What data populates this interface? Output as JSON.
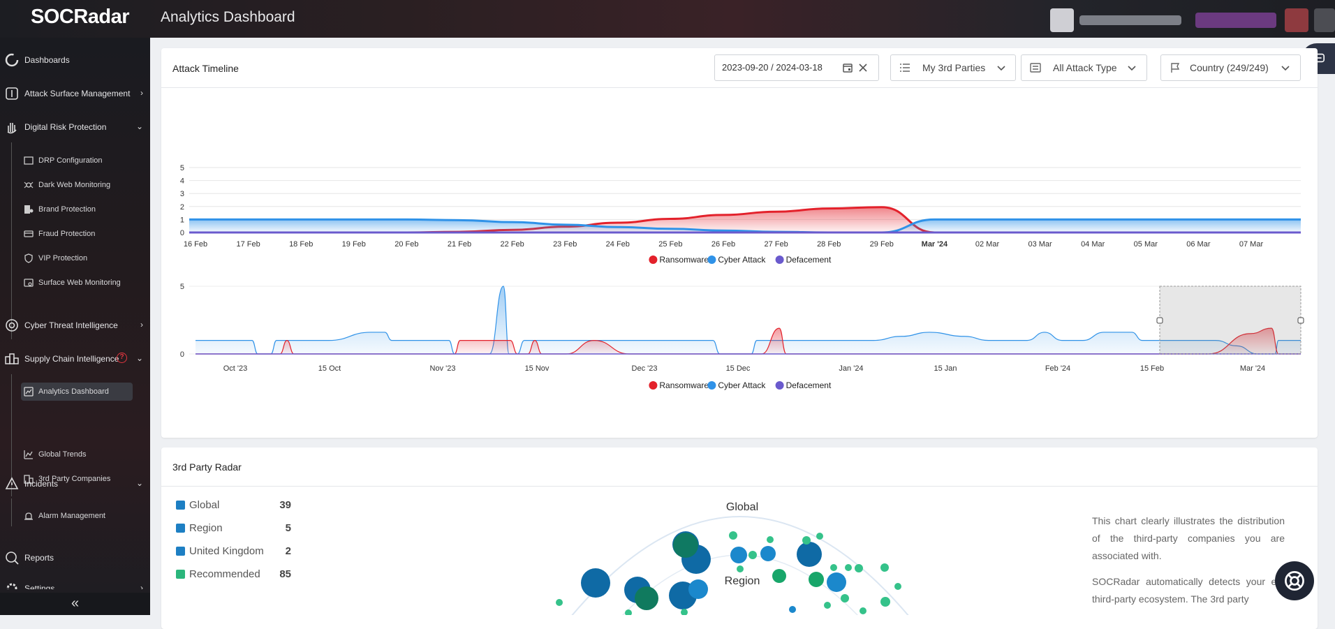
{
  "app": {
    "logo_text": "SOCRadar",
    "title": "Analytics Dashboard"
  },
  "sidebar": {
    "items": [
      {
        "label": "Dashboards",
        "icon": "dashboard-icon",
        "chevron": ""
      },
      {
        "label": "Attack Surface Management",
        "icon": "asm-icon",
        "chevron": "›"
      },
      {
        "label": "Digital Risk Protection",
        "icon": "hand-icon",
        "chevron": "⌄"
      },
      {
        "label": "Cyber Threat Intelligence",
        "icon": "eye-icon",
        "chevron": "›"
      },
      {
        "label": "Supply Chain Intelligence",
        "icon": "supply-chain-icon",
        "chevron": "⌄",
        "badge": "?"
      },
      {
        "label": "Incidents",
        "icon": "incident-icon",
        "chevron": "⌄"
      },
      {
        "label": "Reports",
        "icon": "reports-icon",
        "chevron": ""
      },
      {
        "label": "Settings",
        "icon": "gear-icon",
        "chevron": "›"
      }
    ],
    "drp_sub": [
      {
        "label": "DRP Configuration",
        "icon": "config-icon"
      },
      {
        "label": "Dark Web Monitoring",
        "icon": "spider-icon"
      },
      {
        "label": "Brand Protection",
        "icon": "brand-icon"
      },
      {
        "label": "Fraud Protection",
        "icon": "fraud-icon"
      },
      {
        "label": "VIP Protection",
        "icon": "shield-icon"
      },
      {
        "label": "Surface Web Monitoring",
        "icon": "web-icon"
      }
    ],
    "sci_sub": [
      {
        "label": "Analytics Dashboard",
        "icon": "analytics-icon",
        "active": true
      },
      {
        "label": "Global Trends",
        "icon": "trends-icon"
      },
      {
        "label": "3rd Party Companies",
        "icon": "building-icon"
      }
    ],
    "incidents_sub": [
      {
        "label": "Alarm Management",
        "icon": "alarm-icon"
      }
    ],
    "collapse_glyph": "«"
  },
  "attack_timeline": {
    "title": "Attack Timeline",
    "date_range": "2023-09-20 / 2024-03-18",
    "filter_parties": "My 3rd Parties",
    "filter_attack": "All Attack Type",
    "filter_country": "Country (249/249)"
  },
  "radar": {
    "title": "3rd Party Radar",
    "legend": [
      {
        "name": "Global",
        "value": "39",
        "color": "#1d7fc3"
      },
      {
        "name": "Region",
        "value": "5",
        "color": "#1d7fc3"
      },
      {
        "name": "United Kingdom",
        "value": "2",
        "color": "#1d7fc3"
      },
      {
        "name": "Recommended",
        "value": "85",
        "color": "#2bb67c"
      }
    ],
    "ring_global": "Global",
    "ring_region": "Region",
    "desc1": "This chart clearly illustrates the distribution of the third-party companies you are associated with.",
    "desc2": "SOCRadar automatically detects your ent third-party ecosystem. The 3rd party"
  },
  "chart_data": [
    {
      "type": "area",
      "x": [
        "16 Feb",
        "17 Feb",
        "18 Feb",
        "19 Feb",
        "20 Feb",
        "21 Feb",
        "22 Feb",
        "23 Feb",
        "24 Feb",
        "25 Feb",
        "26 Feb",
        "27 Feb",
        "28 Feb",
        "29 Feb",
        "Mar '24",
        "02 Mar",
        "03 Mar",
        "04 Mar",
        "05 Mar",
        "06 Mar",
        "07 Mar"
      ],
      "ylim": [
        0,
        5
      ],
      "yticks": [
        "0",
        "1",
        "2",
        "3",
        "4",
        "5"
      ],
      "grid": true,
      "series": [
        {
          "name": "Ransomware",
          "color": "#e3212b",
          "values": [
            0,
            0,
            0,
            0,
            0,
            0.05,
            0.2,
            0.45,
            0.75,
            1.05,
            1.35,
            1.6,
            1.85,
            1.95,
            0,
            0,
            0,
            0,
            0,
            0,
            0
          ]
        },
        {
          "name": "Cyber Attack",
          "color": "#2f92e8",
          "values": [
            1,
            1,
            1,
            1,
            1,
            0.95,
            0.8,
            0.6,
            0.42,
            0.28,
            0.15,
            0.05,
            0,
            0,
            1,
            1,
            1,
            1,
            1,
            1,
            1
          ]
        },
        {
          "name": "Defacement",
          "color": "#6a5acd",
          "values": [
            0,
            0,
            0,
            0,
            0,
            0,
            0,
            0,
            0,
            0,
            0,
            0,
            0,
            0,
            0,
            0,
            0,
            0,
            0,
            0,
            0
          ]
        }
      ],
      "legend_position": "bottom"
    },
    {
      "type": "area",
      "x": [
        "Oct '23",
        "15 Oct",
        "Nov '23",
        "15 Nov",
        "Dec '23",
        "15 Dec",
        "Jan '24",
        "15 Jan",
        "Feb '24",
        "15 Feb",
        "Mar '24"
      ],
      "ylim": [
        0,
        5
      ],
      "yticks": [
        "0",
        "5"
      ],
      "series": [
        {
          "name": "Ransomware",
          "color": "#e3212b"
        },
        {
          "name": "Cyber Attack",
          "color": "#2f92e8"
        },
        {
          "name": "Defacement",
          "color": "#6a5acd"
        }
      ],
      "selected_range": [
        "16 Feb",
        "Mar '24"
      ],
      "legend_position": "bottom"
    }
  ]
}
